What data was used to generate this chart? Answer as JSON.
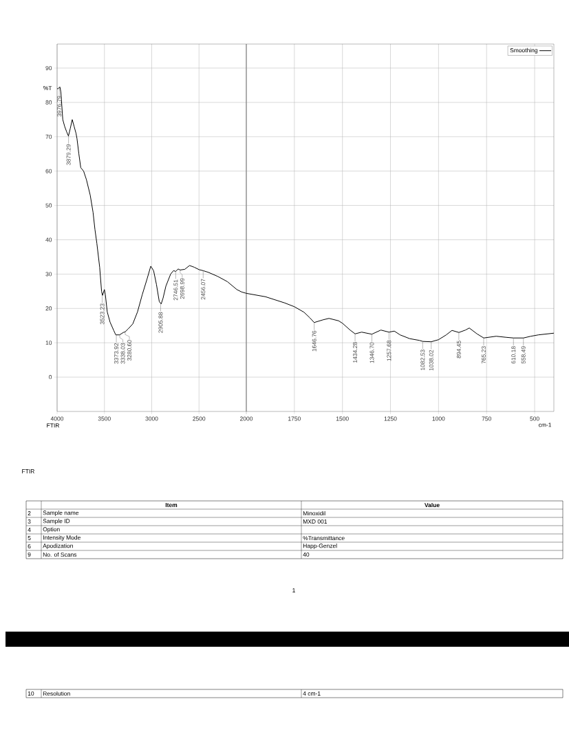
{
  "chart_data": [
    {
      "type": "line",
      "ylabel": "%T",
      "grid": true,
      "xlim": [
        4000,
        2000
      ],
      "ylim": [
        -10,
        97
      ],
      "xticks": [
        4000,
        3500,
        3000,
        2500,
        {
          "value": 2000,
          "label": null
        }
      ],
      "yticks": [
        0,
        10,
        20,
        30,
        40,
        50,
        60,
        70,
        80,
        90
      ],
      "series": [
        {
          "color": "#000000",
          "x": [
            4000,
            3990,
            3970,
            3960,
            3950,
            3940,
            3920,
            3900,
            3880,
            3860,
            3840,
            3820,
            3800,
            3790,
            3770,
            3750,
            3720,
            3690,
            3650,
            3620,
            3600,
            3580,
            3550,
            3530,
            3520,
            3500,
            3490,
            3470,
            3440,
            3400,
            3380,
            3340,
            3300,
            3280,
            3250,
            3200,
            3150,
            3100,
            3050,
            3010,
            2980,
            2950,
            2920,
            2900,
            2880,
            2850,
            2800,
            2770,
            2746,
            2720,
            2699,
            2650,
            2600,
            2550,
            2500,
            2456,
            2400,
            2300,
            2200,
            2100,
            2050,
            2000
          ],
          "values": [
            84,
            84,
            84.5,
            83,
            79,
            75,
            73,
            71.5,
            70.2,
            72.5,
            75,
            73,
            71,
            69.5,
            65,
            61,
            60,
            57.5,
            53,
            48,
            43,
            39,
            32,
            25,
            23.8,
            25.5,
            24,
            19,
            16,
            13.5,
            12.3,
            12.3,
            13,
            13.2,
            14,
            15.5,
            19,
            24,
            28.5,
            32.3,
            31,
            27,
            22,
            21.3,
            23,
            26.5,
            30,
            31,
            30.8,
            31.5,
            31.2,
            31.4,
            32.5,
            32,
            31.3,
            31,
            30.5,
            29.3,
            27.8,
            25.5,
            24.8,
            24.4
          ]
        }
      ],
      "annotations": [
        {
          "text": "3976.79",
          "x": 3976.79,
          "y": 84.3
        },
        {
          "text": "3879.29",
          "x": 3879.29,
          "y": 70.2
        },
        {
          "text": "3523.23",
          "x": 3523.23,
          "y": 23.8
        },
        {
          "text": "3373.92",
          "x": 3373.92,
          "y": 12.3
        },
        {
          "text": "3338.03",
          "x": 3338.03,
          "y": 12.3
        },
        {
          "text": "3280.60",
          "x": 3280.6,
          "y": 13.2
        },
        {
          "text": "2905.88",
          "x": 2905.88,
          "y": 21.3
        },
        {
          "text": "2746.51",
          "x": 2746.51,
          "y": 30.8
        },
        {
          "text": "2698.99",
          "x": 2698.99,
          "y": 31.2
        },
        {
          "text": "2456.07",
          "x": 2456.07,
          "y": 31
        },
        "FTIR",
        "FTIR",
        "Item",
        "Value",
        "2",
        "Sample name",
        "Minoxidil",
        "3",
        "Sample ID",
        "MXD 001",
        "4",
        "Option",
        "5",
        "Intensity Mode",
        "%Transmittance",
        "6",
        "Apodization",
        "Happ-Genzel",
        "9",
        "No. of Scans",
        "40",
        "1",
        "10",
        "Resolution",
        "4 cm-1"
      ]
    },
    {
      "type": "line",
      "xlabel": "cm-1",
      "legend": "top right",
      "grid": true,
      "tick_labels": "x",
      "xlim": [
        2000,
        400
      ],
      "ylim": [
        -10,
        97
      ],
      "xticks": [
        2000,
        1750,
        1500,
        1250,
        1000,
        750,
        500
      ],
      "yticks": [
        {
          "value": 0,
          "label": null
        },
        {
          "value": 10,
          "label": null
        },
        {
          "value": 20,
          "label": null
        },
        {
          "value": 30,
          "label": null
        },
        {
          "value": 40,
          "label": null
        },
        {
          "value": 50,
          "label": null
        },
        {
          "value": 60,
          "label": null
        },
        {
          "value": 70,
          "label": null
        },
        {
          "value": 80,
          "label": null
        },
        {
          "value": 90,
          "label": null
        }
      ],
      "series": [
        {
          "name": "Smoothing",
          "color": "#000000",
          "x": [
            2000,
            1900,
            1800,
            1750,
            1700,
            1670,
            1647,
            1600,
            1570,
            1520,
            1500,
            1460,
            1434,
            1400,
            1347,
            1300,
            1258,
            1230,
            1200,
            1150,
            1100,
            1082,
            1038,
            1000,
            960,
            930,
            894,
            860,
            840,
            800,
            765,
            700,
            650,
            610,
            558,
            520,
            480,
            400
          ],
          "values": [
            24.4,
            23.4,
            21.6,
            20.5,
            18.9,
            17.3,
            15.9,
            16.7,
            17.1,
            16.4,
            15.7,
            13.7,
            12.6,
            13.1,
            12.5,
            13.7,
            13.1,
            13.4,
            12.3,
            11.2,
            10.7,
            10.4,
            10.3,
            10.9,
            12.3,
            13.6,
            13,
            13.7,
            14.3,
            12.6,
            11.4,
            11.9,
            11.6,
            11.4,
            11.4,
            11.9,
            12.3,
            12.8
          ]
        }
      ],
      "annotations": [
        {
          "text": "1646.76",
          "x": 1646.76,
          "y": 15.9
        },
        {
          "text": "1434.28",
          "x": 1434.28,
          "y": 12.6
        },
        {
          "text": "1346.70",
          "x": 1346.7,
          "y": 12.5
        },
        {
          "text": "1257.68",
          "x": 1257.68,
          "y": 13.1
        },
        {
          "text": "1082.53",
          "x": 1082.53,
          "y": 10.4
        },
        {
          "text": "1038.02",
          "x": 1038.02,
          "y": 10.3
        },
        {
          "text": "894.45",
          "x": 894.45,
          "y": 13
        },
        {
          "text": "765.23",
          "x": 765.23,
          "y": 11.4
        },
        {
          "text": "610.18",
          "x": 610.18,
          "y": 11.4
        },
        {
          "text": "558.49",
          "x": 558.49,
          "y": 11.4
        }
      ]
    }
  ]
}
